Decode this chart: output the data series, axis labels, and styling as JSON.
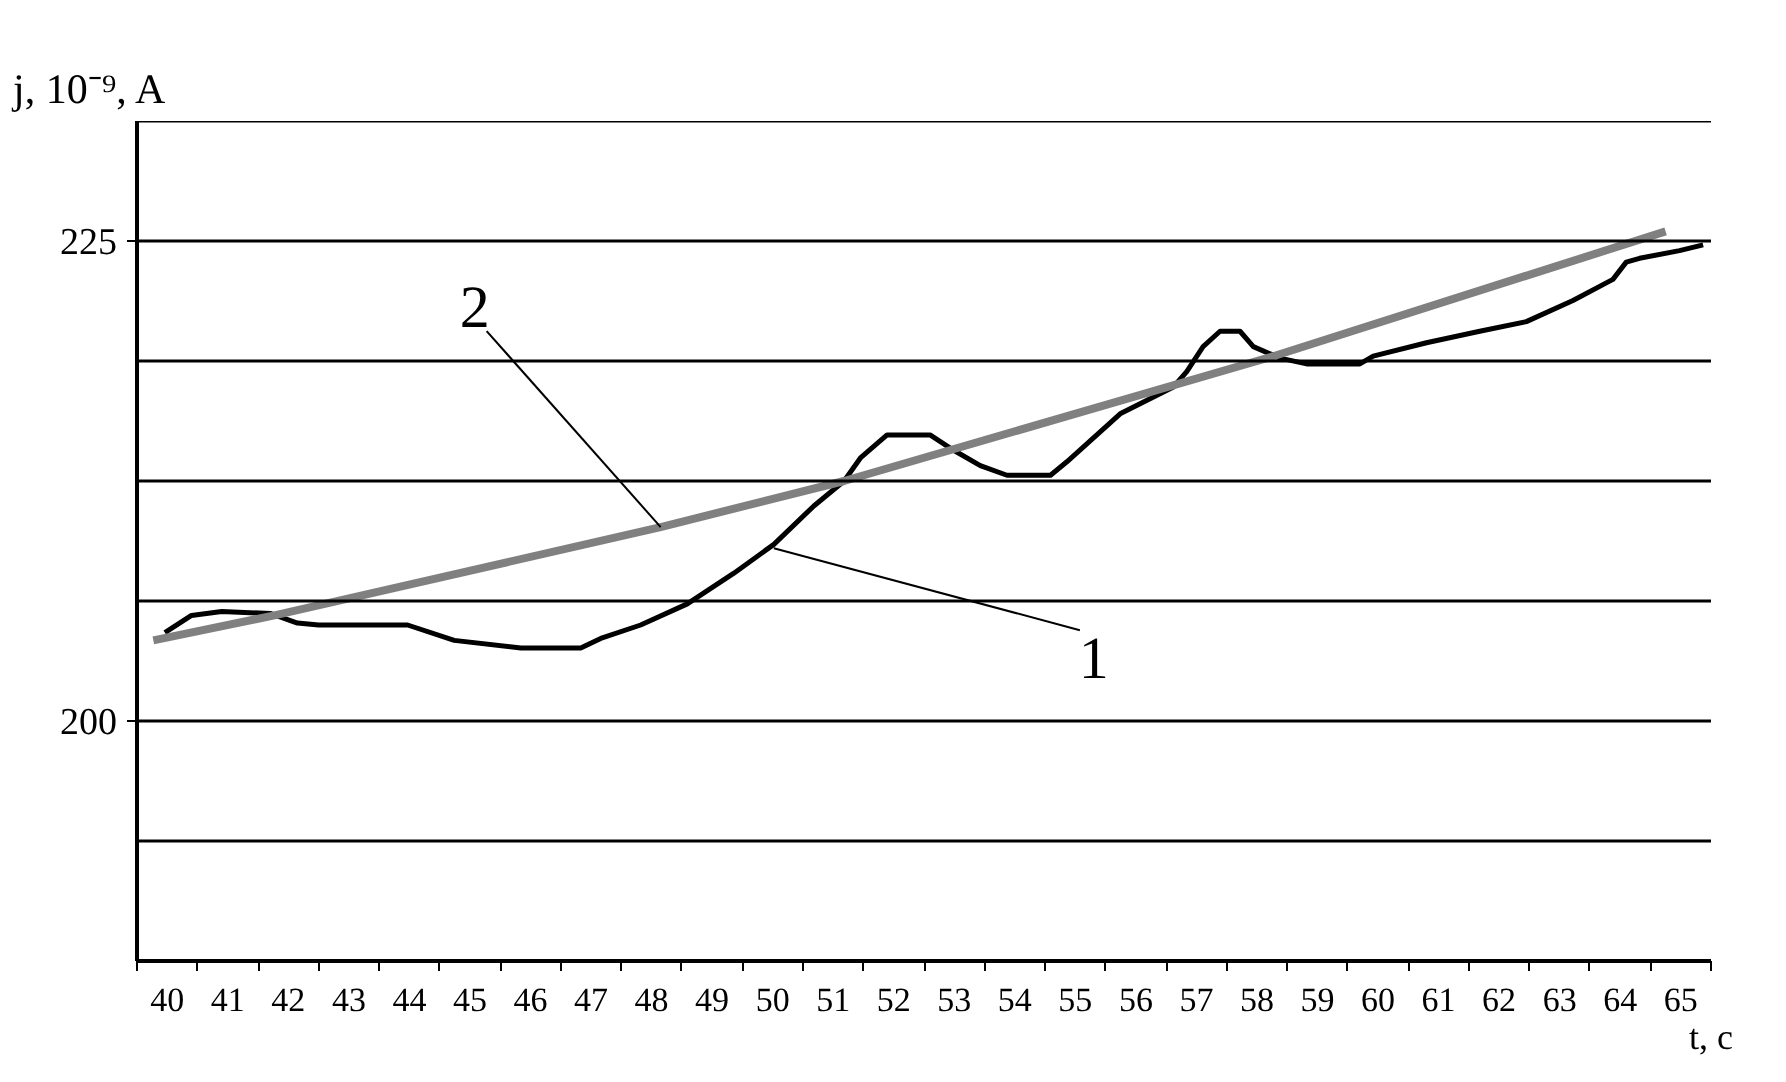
{
  "chart_data": {
    "type": "line",
    "xlabel": "t, c",
    "ylabel": "j, 10⁻⁹, A",
    "xlim": [
      39.5,
      65.5
    ],
    "xticks": [
      {
        "value": 39.5,
        "label": null
      },
      40,
      {
        "value": 40.5,
        "label": null
      },
      41,
      {
        "value": 41.5,
        "label": null
      },
      42,
      {
        "value": 42.5,
        "label": null
      },
      43,
      {
        "value": 43.5,
        "label": null
      },
      44,
      {
        "value": 44.5,
        "label": null
      },
      45,
      {
        "value": 45.5,
        "label": null
      },
      46,
      {
        "value": 46.5,
        "label": null
      },
      47,
      {
        "value": 47.5,
        "label": null
      },
      48,
      {
        "value": 48.5,
        "label": null
      },
      49,
      {
        "value": 49.5,
        "label": null
      },
      50,
      {
        "value": 50.5,
        "label": null
      },
      51,
      {
        "value": 51.5,
        "label": null
      },
      52,
      {
        "value": 52.5,
        "label": null
      },
      53,
      {
        "value": 53.5,
        "label": null
      },
      54,
      {
        "value": 54.5,
        "label": null
      },
      55,
      {
        "value": 55.5,
        "label": null
      },
      56,
      {
        "value": 56.5,
        "label": null
      },
      57,
      {
        "value": 57.5,
        "label": null
      },
      58,
      {
        "value": 58.5,
        "label": null
      },
      59,
      {
        "value": 59.5,
        "label": null
      },
      60,
      {
        "value": 60.5,
        "label": null
      },
      61,
      {
        "value": 61.5,
        "label": null
      },
      62,
      {
        "value": 62.5,
        "label": null
      },
      63,
      {
        "value": 63.5,
        "label": null
      },
      64,
      {
        "value": 64.5,
        "label": null
      },
      65,
      {
        "value": 65.5,
        "label": null
      }
    ],
    "ylim": [
      187.5,
      231.25
    ],
    "yticks": [
      {
        "value": 193.75,
        "label": null
      },
      200,
      {
        "value": 206.25,
        "label": null
      },
      {
        "value": 212.5,
        "label": null
      },
      {
        "value": 218.75,
        "label": null
      },
      225,
      {
        "value": 231.25,
        "label": null
      }
    ],
    "grid": "y",
    "marker": "none",
    "line_style": "solid",
    "series": [
      {
        "color": "#000000",
        "x": [
          39.96,
          40.4,
          40.9,
          41.7,
          42.15,
          42.5,
          43.97,
          44.74,
          45.84,
          46.83,
          47.16,
          47.82,
          48.59,
          49.36,
          50.02,
          50.68,
          51.18,
          51.45,
          51.89,
          52.6,
          52.99,
          53.43,
          53.87,
          54.59,
          54.86,
          55.74,
          56.62,
          56.84,
          57.11,
          57.39,
          57.72,
          57.94,
          58.38,
          58.82,
          59.7,
          59.92,
          60.8,
          61.68,
          62.45,
          63.22,
          63.88,
          64.1,
          64.32,
          64.98,
          65.37
        ],
        "values": [
          204.6,
          205.5,
          205.7,
          205.6,
          205.1,
          205.0,
          205.0,
          204.2,
          203.8,
          203.8,
          204.3,
          205.0,
          206.1,
          207.7,
          209.2,
          211.2,
          212.5,
          213.7,
          214.9,
          214.9,
          214.1,
          213.3,
          212.8,
          212.8,
          213.5,
          216.0,
          217.4,
          218.2,
          219.5,
          220.3,
          220.3,
          219.5,
          218.9,
          218.6,
          218.6,
          219.0,
          219.7,
          220.3,
          220.8,
          221.9,
          223.0,
          223.9,
          224.1,
          224.5,
          224.8
        ]
      },
      {
        "color": "#808080",
        "x": [
          39.77,
          41.77,
          48.15,
          51.18,
          58.27,
          64.75
        ],
        "values": [
          204.2,
          205.5,
          210.1,
          212.5,
          219.0,
          225.5
        ]
      }
    ],
    "annotations": [
      {
        "text": "2",
        "x": 48.15,
        "y": 210.1
      },
      {
        "text": "1",
        "x": 50.02,
        "y": 209.0
      }
    ]
  }
}
